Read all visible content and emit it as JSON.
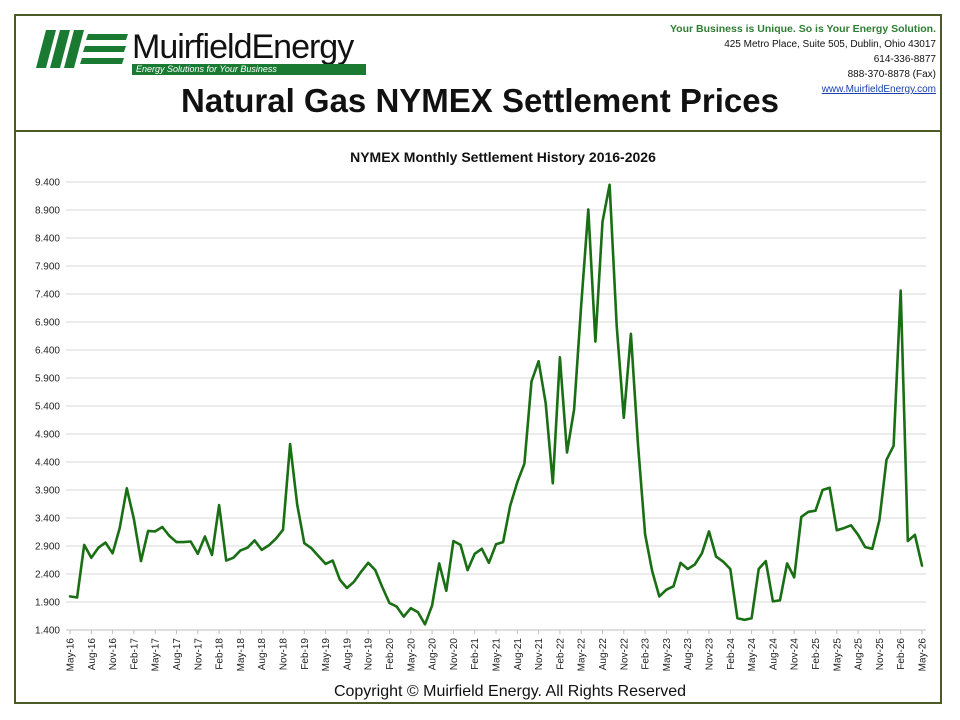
{
  "header": {
    "logo_name": "MuirfieldEnergy",
    "logo_tagline": "Energy Solutions for Your Business",
    "slogan": "Your Business is Unique. So is Your Energy Solution.",
    "address": "425 Metro Place, Suite 505, Dublin, Ohio 43017",
    "phone": "614-336-8877",
    "fax": "888-370-8878 (Fax)",
    "website": "www.MuirfieldEnergy.com",
    "page_title": "Natural Gas NYMEX Settlement Prices"
  },
  "footer": {
    "copyright": "Copyright © Muirfield Energy. All Rights Reserved"
  },
  "colors": {
    "line": "#1a6e14",
    "frame": "#4d5a28",
    "brand_green": "#1a7a32",
    "grid": "#d9d9d9"
  },
  "chart_data": {
    "type": "line",
    "title": "NYMEX Monthly Settlement History 2016-2026",
    "xlabel": "",
    "ylabel": "",
    "ylim": [
      1.4,
      9.4
    ],
    "yticks": [
      "1.400",
      "1.900",
      "2.400",
      "2.900",
      "3.400",
      "3.900",
      "4.400",
      "4.900",
      "5.400",
      "5.900",
      "6.400",
      "6.900",
      "7.400",
      "7.900",
      "8.400",
      "8.900",
      "9.400"
    ],
    "xtick_labels": [
      "May-16",
      "Aug-16",
      "Nov-16",
      "Feb-17",
      "May-17",
      "Aug-17",
      "Nov-17",
      "Feb-18",
      "May-18",
      "Aug-18",
      "Nov-18",
      "Feb-19",
      "May-19",
      "Aug-19",
      "Nov-19",
      "Feb-20",
      "May-20",
      "Aug-20",
      "Nov-20",
      "Feb-21",
      "May-21",
      "Aug-21",
      "Nov-21",
      "Feb-22",
      "May-22",
      "Aug-22",
      "Nov-22",
      "Feb-23",
      "May-23",
      "Aug-23",
      "Nov-23",
      "Feb-24",
      "May-24",
      "Aug-24",
      "Nov-24",
      "Feb-25",
      "May-25",
      "Aug-25",
      "Nov-25",
      "Feb-26",
      "May-26"
    ],
    "grid": true,
    "legend": "none",
    "series": [
      {
        "start": "May-16",
        "frequency": "monthly",
        "values": [
          2.0,
          1.98,
          2.92,
          2.69,
          2.87,
          2.96,
          2.77,
          3.22,
          3.93,
          3.38,
          2.63,
          3.17,
          3.16,
          3.24,
          3.08,
          2.97,
          2.97,
          2.98,
          2.76,
          3.07,
          2.74,
          3.63,
          2.64,
          2.69,
          2.82,
          2.87,
          3.0,
          2.83,
          2.91,
          3.03,
          3.19,
          4.72,
          3.64,
          2.95,
          2.86,
          2.72,
          2.58,
          2.64,
          2.3,
          2.15,
          2.26,
          2.44,
          2.6,
          2.47,
          2.16,
          1.88,
          1.82,
          1.64,
          1.79,
          1.72,
          1.5,
          1.84,
          2.59,
          2.1,
          2.99,
          2.92,
          2.47,
          2.76,
          2.85,
          2.6,
          2.93,
          2.97,
          3.62,
          4.04,
          4.37,
          5.84,
          6.2,
          5.45,
          4.02,
          6.27,
          4.57,
          5.34,
          7.2,
          8.91,
          6.55,
          8.69,
          9.35,
          6.83,
          5.19,
          6.69,
          4.71,
          3.11,
          2.45,
          2.0,
          2.12,
          2.18,
          2.6,
          2.49,
          2.57,
          2.77,
          3.16,
          2.71,
          2.62,
          2.49,
          1.61,
          1.58,
          1.61,
          2.49,
          2.63,
          1.91,
          1.93,
          2.59,
          2.34,
          3.42,
          3.51,
          3.53,
          3.9,
          3.94,
          3.18,
          3.22,
          3.27,
          3.1,
          2.88,
          2.85,
          3.36,
          4.44,
          4.69,
          7.46,
          2.99,
          3.1,
          2.55
        ]
      }
    ]
  }
}
